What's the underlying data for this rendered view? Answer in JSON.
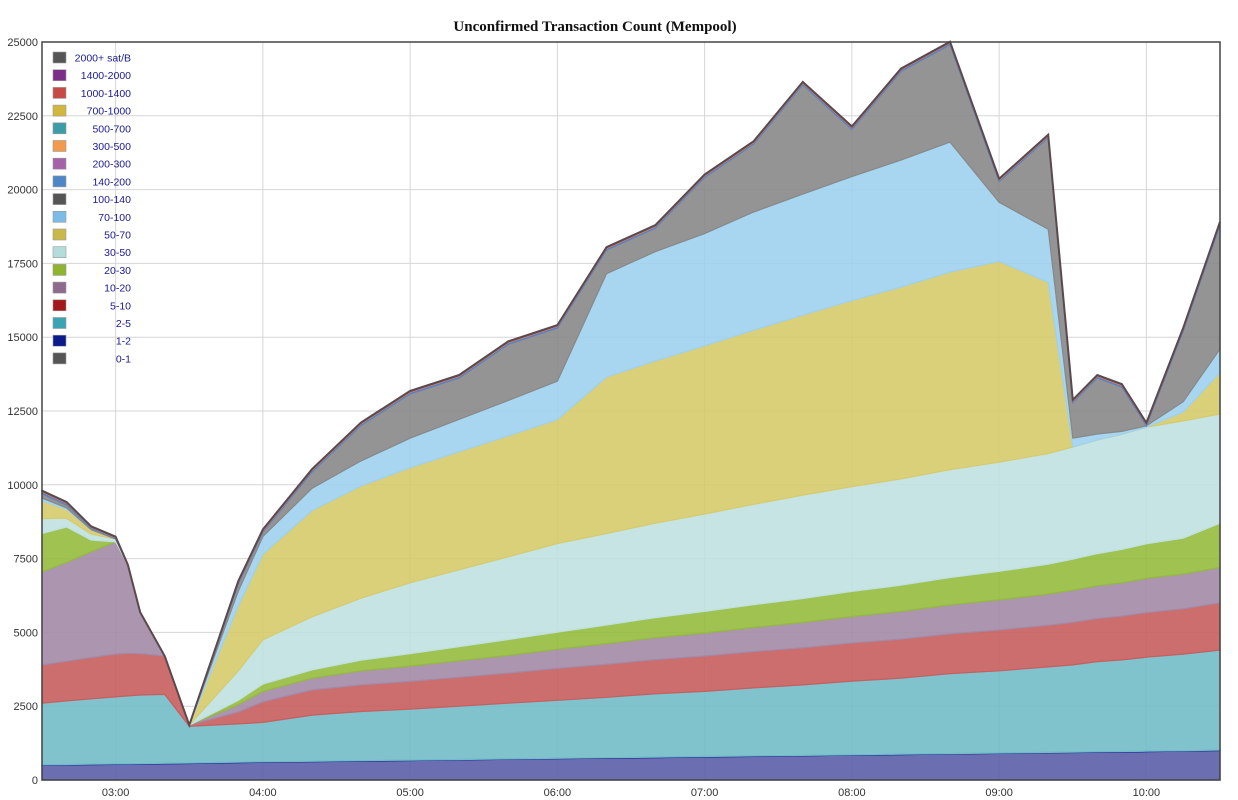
{
  "chart_data": {
    "type": "area",
    "stacked": true,
    "title": "Unconfirmed Transaction Count (Mempool)",
    "xlabel": "",
    "ylabel": "",
    "ylim": [
      0,
      25000
    ],
    "yticks": [
      0,
      2500,
      5000,
      7500,
      10000,
      12500,
      15000,
      17500,
      20000,
      22500,
      25000
    ],
    "xlim": [
      "02:30",
      "10:30"
    ],
    "xticks": [
      "03:00",
      "04:00",
      "05:00",
      "06:00",
      "07:00",
      "08:00",
      "09:00",
      "10:00"
    ],
    "grid": true,
    "legend_position": "top-left",
    "x": [
      "02:30",
      "02:40",
      "02:50",
      "03:00",
      "03:05",
      "03:10",
      "03:20",
      "03:30",
      "03:50",
      "04:00",
      "04:20",
      "04:40",
      "05:00",
      "05:20",
      "05:40",
      "06:00",
      "06:20",
      "06:40",
      "07:00",
      "07:20",
      "07:40",
      "08:00",
      "08:20",
      "08:40",
      "09:00",
      "09:20",
      "09:30",
      "09:40",
      "09:50",
      "10:00",
      "10:15",
      "10:30"
    ],
    "series": [
      {
        "name": "0-1",
        "color": "#5b5fa8",
        "values": [
          500,
          510,
          520,
          530,
          535,
          540,
          550,
          560,
          590,
          600,
          620,
          640,
          660,
          680,
          700,
          720,
          740,
          760,
          780,
          800,
          820,
          840,
          860,
          880,
          900,
          920,
          930,
          940,
          950,
          960,
          975,
          1000
        ]
      },
      {
        "name": "1-2",
        "color": "#0d1a8a",
        "values": [
          15,
          15,
          15,
          15,
          15,
          15,
          15,
          15,
          15,
          15,
          15,
          15,
          15,
          15,
          15,
          15,
          15,
          15,
          15,
          15,
          15,
          15,
          15,
          15,
          15,
          15,
          15,
          15,
          15,
          15,
          15,
          15
        ]
      },
      {
        "name": "2-5",
        "color": "#72bcc8",
        "values": [
          2085,
          2155,
          2215,
          2270,
          2300,
          2325,
          2335,
          1245,
          1295,
          1335,
          1565,
          1665,
          1725,
          1805,
          1885,
          1965,
          2045,
          2145,
          2205,
          2305,
          2385,
          2495,
          2575,
          2705,
          2785,
          2895,
          2955,
          3055,
          3105,
          3185,
          3275,
          3385
        ]
      },
      {
        "name": "5-10",
        "color": "#c85e5e",
        "values": [
          1300,
          1340,
          1400,
          1450,
          1440,
          1400,
          1300,
          40,
          400,
          700,
          850,
          900,
          940,
          980,
          1020,
          1080,
          1120,
          1160,
          1200,
          1230,
          1260,
          1290,
          1320,
          1350,
          1380,
          1410,
          1440,
          1460,
          1480,
          1510,
          1535,
          1600
        ]
      },
      {
        "name": "10-20",
        "color": "#a38aa6",
        "values": [
          3150,
          3350,
          3580,
          3800,
          3000,
          1400,
          0,
          0,
          250,
          350,
          400,
          480,
          520,
          560,
          600,
          650,
          700,
          740,
          780,
          820,
          860,
          900,
          940,
          980,
          1020,
          1060,
          1090,
          1110,
          1130,
          1160,
          1180,
          1200
        ]
      },
      {
        "name": "20-30",
        "color": "#95bb3d",
        "values": [
          1300,
          1200,
          400,
          0,
          0,
          0,
          0,
          0,
          150,
          250,
          280,
          360,
          420,
          480,
          540,
          580,
          630,
          680,
          730,
          770,
          810,
          850,
          890,
          930,
          970,
          1010,
          1050,
          1090,
          1130,
          1170,
          1210,
          1500
        ]
      },
      {
        "name": "30-50",
        "color": "#bfe1e0",
        "values": [
          500,
          300,
          200,
          100,
          0,
          0,
          0,
          0,
          1000,
          1500,
          1800,
          2100,
          2400,
          2600,
          2800,
          3000,
          3100,
          3200,
          3300,
          3400,
          3500,
          3550,
          3600,
          3650,
          3700,
          3750,
          3800,
          3850,
          3900,
          3950,
          3975,
          3700
        ]
      },
      {
        "name": "50-70",
        "color": "#d6cb6c",
        "values": [
          600,
          300,
          150,
          0,
          0,
          0,
          0,
          0,
          2200,
          2900,
          3600,
          3800,
          3900,
          4000,
          4100,
          4200,
          5300,
          5500,
          5700,
          5900,
          6100,
          6300,
          6500,
          6700,
          6800,
          5800,
          0,
          0,
          0,
          0,
          300,
          1400
        ]
      },
      {
        "name": "70-100",
        "color": "#9fd1ee",
        "values": [
          100,
          50,
          0,
          0,
          0,
          0,
          0,
          0,
          500,
          600,
          750,
          850,
          1000,
          1100,
          1200,
          1300,
          3500,
          3700,
          3800,
          4000,
          4100,
          4200,
          4300,
          4400,
          2000,
          1800,
          300,
          200,
          100,
          50,
          350,
          800
        ]
      },
      {
        "name": "100-140",
        "color": "#888888",
        "values": [
          150,
          100,
          50,
          30,
          0,
          0,
          0,
          0,
          250,
          150,
          550,
          1200,
          1500,
          1400,
          1900,
          1800,
          800,
          800,
          1900,
          2300,
          3700,
          1600,
          3000,
          3300,
          700,
          3100,
          1200,
          1900,
          1500,
          0,
          2400,
          4200
        ]
      },
      {
        "name": "140-200",
        "color": "#4f86c6",
        "values": [
          40,
          40,
          20,
          10,
          0,
          0,
          0,
          0,
          30,
          30,
          40,
          40,
          40,
          40,
          40,
          40,
          40,
          40,
          40,
          40,
          40,
          40,
          40,
          40,
          40,
          40,
          40,
          40,
          40,
          40,
          40,
          50
        ]
      },
      {
        "name": "200-300",
        "color": "#a463a8",
        "values": [
          20,
          20,
          10,
          5,
          0,
          0,
          0,
          0,
          20,
          20,
          20,
          20,
          20,
          20,
          20,
          20,
          20,
          20,
          20,
          20,
          20,
          20,
          20,
          20,
          20,
          20,
          20,
          20,
          20,
          20,
          20,
          20
        ]
      },
      {
        "name": "300-500",
        "color": "#f39a4c",
        "values": [
          10,
          10,
          5,
          5,
          0,
          0,
          0,
          0,
          10,
          10,
          10,
          10,
          10,
          10,
          10,
          10,
          10,
          10,
          10,
          10,
          10,
          10,
          10,
          10,
          10,
          10,
          10,
          10,
          10,
          10,
          10,
          10
        ]
      },
      {
        "name": "500-700",
        "color": "#3c9da8",
        "values": [
          5,
          5,
          5,
          5,
          0,
          0,
          0,
          0,
          5,
          5,
          5,
          5,
          5,
          5,
          5,
          5,
          5,
          5,
          5,
          5,
          5,
          5,
          5,
          5,
          5,
          5,
          5,
          5,
          5,
          5,
          5,
          5
        ]
      },
      {
        "name": "700-1000",
        "color": "#d2b73e",
        "values": [
          5,
          5,
          5,
          5,
          0,
          0,
          0,
          0,
          5,
          5,
          5,
          5,
          5,
          5,
          5,
          5,
          5,
          5,
          5,
          5,
          5,
          5,
          5,
          5,
          5,
          5,
          5,
          5,
          5,
          5,
          5,
          5
        ]
      },
      {
        "name": "1000-1400",
        "color": "#c64a45",
        "values": [
          5,
          5,
          5,
          5,
          0,
          0,
          0,
          0,
          5,
          5,
          5,
          5,
          5,
          5,
          5,
          5,
          5,
          5,
          5,
          5,
          5,
          5,
          5,
          5,
          5,
          5,
          5,
          5,
          5,
          5,
          5,
          5
        ]
      },
      {
        "name": "1400-2000",
        "color": "#7b2f88",
        "values": [
          5,
          5,
          5,
          5,
          0,
          0,
          0,
          0,
          5,
          5,
          5,
          5,
          5,
          5,
          5,
          5,
          5,
          5,
          5,
          5,
          5,
          5,
          5,
          5,
          5,
          5,
          5,
          5,
          5,
          5,
          5,
          5
        ]
      },
      {
        "name": "2000+ sat/B",
        "color": "#555555",
        "values": [
          10,
          10,
          10,
          10,
          0,
          0,
          0,
          0,
          10,
          10,
          10,
          10,
          10,
          10,
          10,
          10,
          10,
          10,
          10,
          10,
          10,
          10,
          10,
          10,
          10,
          10,
          10,
          10,
          10,
          10,
          10,
          10
        ]
      }
    ],
    "legend_order": [
      "2000+ sat/B",
      "1400-2000",
      "1000-1400",
      "700-1000",
      "500-700",
      "300-500",
      "200-300",
      "140-200",
      "100-140",
      "70-100",
      "50-70",
      "30-50",
      "20-30",
      "10-20",
      "5-10",
      "2-5",
      "1-2",
      "0-1"
    ],
    "legend_swatch_colors": {
      "2000+ sat/B": "#555555",
      "1400-2000": "#7b2f88",
      "1000-1400": "#c64a45",
      "700-1000": "#d2b73e",
      "500-700": "#3c9da8",
      "300-500": "#f39a4c",
      "200-300": "#a463a8",
      "140-200": "#4f86c6",
      "100-140": "#555555",
      "70-100": "#7bbbe6",
      "50-70": "#cbb84a",
      "30-50": "#b5dcdb",
      "20-30": "#8fb52e",
      "10-20": "#8e6a8f",
      "5-10": "#a31818",
      "2-5": "#3ba4b3",
      "1-2": "#0d1a8a",
      "0-1": "#555555"
    },
    "top_outline_color": "#5a4a4e"
  }
}
